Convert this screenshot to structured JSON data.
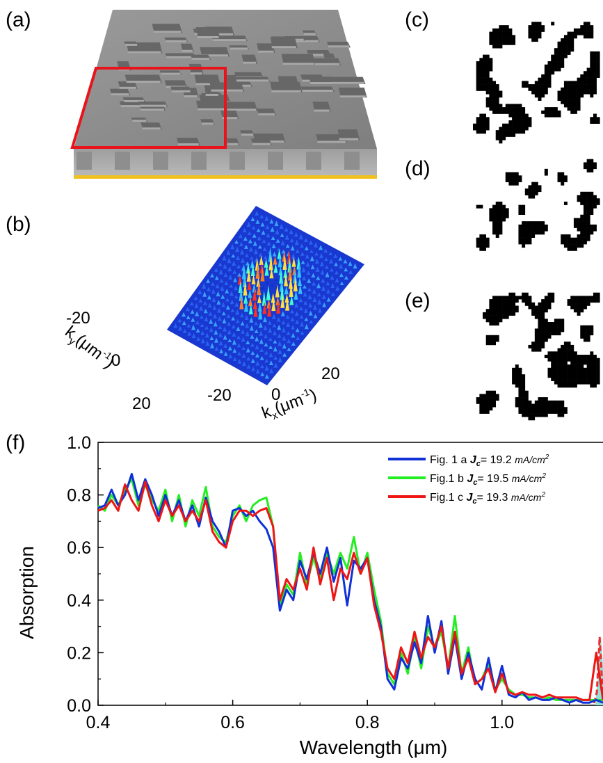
{
  "panels": {
    "a": "(a)",
    "b": "(b)",
    "c": "(c)",
    "d": "(d)",
    "e": "(e)",
    "f": "(f)"
  },
  "panel_b": {
    "ky_label": "k",
    "ky_sub": "y",
    "ky_unit": "(μm",
    "ky_sup": "-1",
    "ky_close": ")",
    "kx_label": "k",
    "kx_sub": "x",
    "kx_unit": "(μm",
    "kx_sup": "-1",
    "kx_close": ")",
    "ky_ticks": [
      "-20",
      "0",
      "20"
    ],
    "kx_ticks": [
      "-20",
      "0",
      "20"
    ]
  },
  "colors": {
    "fig1a": "#1030d8",
    "fig1b": "#22ee22",
    "fig1c": "#ee1515",
    "extra": "#e83030",
    "extra_fill": "#8fe0d8",
    "substrate": "#f0c020",
    "frame": "#e8141c",
    "surface": "#8c8c8c"
  },
  "chart_data": {
    "type": "line",
    "title": "",
    "xlabel": "Wavelength (μm)",
    "ylabel": "Absorption",
    "xlim": [
      0.4,
      1.15
    ],
    "ylim": [
      0.0,
      1.0
    ],
    "xticks": [
      "0.4",
      "0.6",
      "0.8",
      "1.0"
    ],
    "yticks": [
      "0.0",
      "0.2",
      "0.4",
      "0.6",
      "0.8",
      "1.0"
    ],
    "legend_position": "top-right",
    "legend": [
      {
        "prefix": "Fig. 1 a ",
        "jc": "J",
        "jc_sub": "c",
        "eq": "= 19.2 ",
        "unit": "mA/cm",
        "unit_sup": "2"
      },
      {
        "prefix": "Fig.1 b ",
        "jc": "J",
        "jc_sub": "c",
        "eq": "= 19.5 ",
        "unit": "mA/cm",
        "unit_sup": "2"
      },
      {
        "prefix": "Fig.1 c ",
        "jc": "J",
        "jc_sub": "c",
        "eq": "= 19.3 ",
        "unit": "mA/cm",
        "unit_sup": "2"
      }
    ],
    "series": [
      {
        "name": "Fig. 1 a",
        "x": [
          0.4,
          0.41,
          0.42,
          0.43,
          0.44,
          0.45,
          0.46,
          0.47,
          0.48,
          0.49,
          0.5,
          0.51,
          0.52,
          0.53,
          0.54,
          0.55,
          0.56,
          0.57,
          0.58,
          0.59,
          0.6,
          0.61,
          0.62,
          0.63,
          0.64,
          0.65,
          0.66,
          0.67,
          0.68,
          0.69,
          0.7,
          0.71,
          0.72,
          0.73,
          0.74,
          0.75,
          0.76,
          0.77,
          0.78,
          0.79,
          0.8,
          0.81,
          0.82,
          0.83,
          0.84,
          0.85,
          0.86,
          0.87,
          0.88,
          0.89,
          0.9,
          0.91,
          0.92,
          0.93,
          0.94,
          0.95,
          0.96,
          0.97,
          0.98,
          0.99,
          1.0,
          1.01,
          1.02,
          1.03,
          1.04,
          1.05,
          1.06,
          1.07,
          1.08,
          1.09,
          1.1,
          1.11,
          1.12,
          1.13,
          1.14,
          1.15
        ],
        "y": [
          0.75,
          0.76,
          0.82,
          0.76,
          0.8,
          0.88,
          0.78,
          0.86,
          0.8,
          0.72,
          0.8,
          0.72,
          0.78,
          0.7,
          0.76,
          0.68,
          0.79,
          0.7,
          0.66,
          0.6,
          0.74,
          0.75,
          0.72,
          0.74,
          0.7,
          0.67,
          0.6,
          0.36,
          0.44,
          0.4,
          0.55,
          0.48,
          0.58,
          0.5,
          0.6,
          0.47,
          0.56,
          0.38,
          0.55,
          0.52,
          0.56,
          0.4,
          0.3,
          0.1,
          0.06,
          0.18,
          0.14,
          0.24,
          0.16,
          0.34,
          0.2,
          0.32,
          0.12,
          0.26,
          0.1,
          0.2,
          0.1,
          0.06,
          0.18,
          0.05,
          0.15,
          0.04,
          0.03,
          0.05,
          0.02,
          0.03,
          0.02,
          0.02,
          0.03,
          0.02,
          0.01,
          0.02,
          0.01,
          0.01,
          0.02,
          0.01
        ]
      },
      {
        "name": "Fig.1 b",
        "x": [
          0.4,
          0.41,
          0.42,
          0.43,
          0.44,
          0.45,
          0.46,
          0.47,
          0.48,
          0.49,
          0.5,
          0.51,
          0.52,
          0.53,
          0.54,
          0.55,
          0.56,
          0.57,
          0.58,
          0.59,
          0.6,
          0.61,
          0.62,
          0.63,
          0.64,
          0.65,
          0.66,
          0.67,
          0.68,
          0.69,
          0.7,
          0.71,
          0.72,
          0.73,
          0.74,
          0.75,
          0.76,
          0.77,
          0.78,
          0.79,
          0.8,
          0.81,
          0.82,
          0.83,
          0.84,
          0.85,
          0.86,
          0.87,
          0.88,
          0.89,
          0.9,
          0.91,
          0.92,
          0.93,
          0.94,
          0.95,
          0.96,
          0.97,
          0.98,
          0.99,
          1.0,
          1.01,
          1.02,
          1.03,
          1.04,
          1.05,
          1.06,
          1.07,
          1.08,
          1.09,
          1.1,
          1.11,
          1.12,
          1.13,
          1.14,
          1.15
        ],
        "y": [
          0.76,
          0.74,
          0.8,
          0.76,
          0.82,
          0.86,
          0.76,
          0.84,
          0.78,
          0.74,
          0.82,
          0.7,
          0.8,
          0.68,
          0.78,
          0.72,
          0.83,
          0.68,
          0.64,
          0.62,
          0.72,
          0.76,
          0.7,
          0.76,
          0.78,
          0.79,
          0.68,
          0.38,
          0.46,
          0.42,
          0.58,
          0.46,
          0.56,
          0.48,
          0.58,
          0.5,
          0.58,
          0.52,
          0.64,
          0.5,
          0.58,
          0.44,
          0.32,
          0.12,
          0.08,
          0.2,
          0.12,
          0.26,
          0.14,
          0.3,
          0.22,
          0.28,
          0.14,
          0.34,
          0.12,
          0.22,
          0.08,
          0.1,
          0.16,
          0.06,
          0.1,
          0.06,
          0.04,
          0.04,
          0.03,
          0.03,
          0.02,
          0.03,
          0.02,
          0.02,
          0.02,
          0.02,
          0.02,
          0.02,
          0.02,
          0.02
        ]
      },
      {
        "name": "Fig.1 c",
        "x": [
          0.4,
          0.41,
          0.42,
          0.43,
          0.44,
          0.45,
          0.46,
          0.47,
          0.48,
          0.49,
          0.5,
          0.51,
          0.52,
          0.53,
          0.54,
          0.55,
          0.56,
          0.57,
          0.58,
          0.59,
          0.6,
          0.61,
          0.62,
          0.63,
          0.64,
          0.65,
          0.66,
          0.67,
          0.68,
          0.69,
          0.7,
          0.71,
          0.72,
          0.73,
          0.74,
          0.75,
          0.76,
          0.77,
          0.78,
          0.79,
          0.8,
          0.81,
          0.82,
          0.83,
          0.84,
          0.85,
          0.86,
          0.87,
          0.88,
          0.89,
          0.9,
          0.91,
          0.92,
          0.93,
          0.94,
          0.95,
          0.96,
          0.97,
          0.98,
          0.99,
          1.0,
          1.01,
          1.02,
          1.03,
          1.04,
          1.05,
          1.06,
          1.07,
          1.08,
          1.09,
          1.1,
          1.11,
          1.12,
          1.13,
          1.14,
          1.15
        ],
        "y": [
          0.74,
          0.75,
          0.78,
          0.74,
          0.84,
          0.78,
          0.74,
          0.85,
          0.76,
          0.7,
          0.78,
          0.72,
          0.76,
          0.7,
          0.74,
          0.7,
          0.78,
          0.66,
          0.62,
          0.6,
          0.7,
          0.74,
          0.74,
          0.72,
          0.74,
          0.75,
          0.68,
          0.4,
          0.48,
          0.44,
          0.52,
          0.44,
          0.6,
          0.46,
          0.56,
          0.4,
          0.52,
          0.48,
          0.58,
          0.5,
          0.56,
          0.38,
          0.28,
          0.14,
          0.1,
          0.22,
          0.16,
          0.28,
          0.18,
          0.26,
          0.22,
          0.3,
          0.14,
          0.28,
          0.12,
          0.18,
          0.08,
          0.1,
          0.14,
          0.05,
          0.12,
          0.05,
          0.04,
          0.05,
          0.04,
          0.04,
          0.03,
          0.04,
          0.03,
          0.03,
          0.03,
          0.03,
          0.02,
          0.02,
          0.2,
          0.02
        ]
      }
    ]
  }
}
